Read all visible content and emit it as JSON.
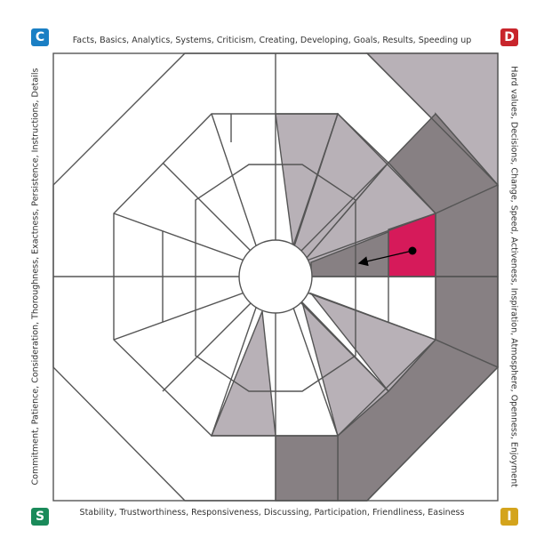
{
  "labels": {
    "top": "Facts, Basics, Analytics, Systems, Criticism, Creating, Developing, Goals, Results, Speeding up",
    "bottom": "Stability, Trustworthiness, Responsiveness, Discussing, Participation, Friendliness, Easiness",
    "left": "Commitment, Patience, Consideration, Thoroughness, Exactness, Persistence, Instructions, Details",
    "right": "Hard values, Decisions, Change, Speed, Activeness, Inspiration, Atmosphere, Openness, Enjoyment"
  },
  "badges": {
    "c": {
      "letter": "C",
      "color": "#1a7fc4"
    },
    "d": {
      "letter": "D",
      "color": "#c8252c"
    },
    "s": {
      "letter": "S",
      "color": "#1a8a5a"
    },
    "i": {
      "letter": "I",
      "color": "#d4a41c"
    }
  },
  "colors": {
    "light_gray": "#b8b1b7",
    "dark_gray": "#878083",
    "highlight": "#d61a5a",
    "line": "#555555"
  }
}
